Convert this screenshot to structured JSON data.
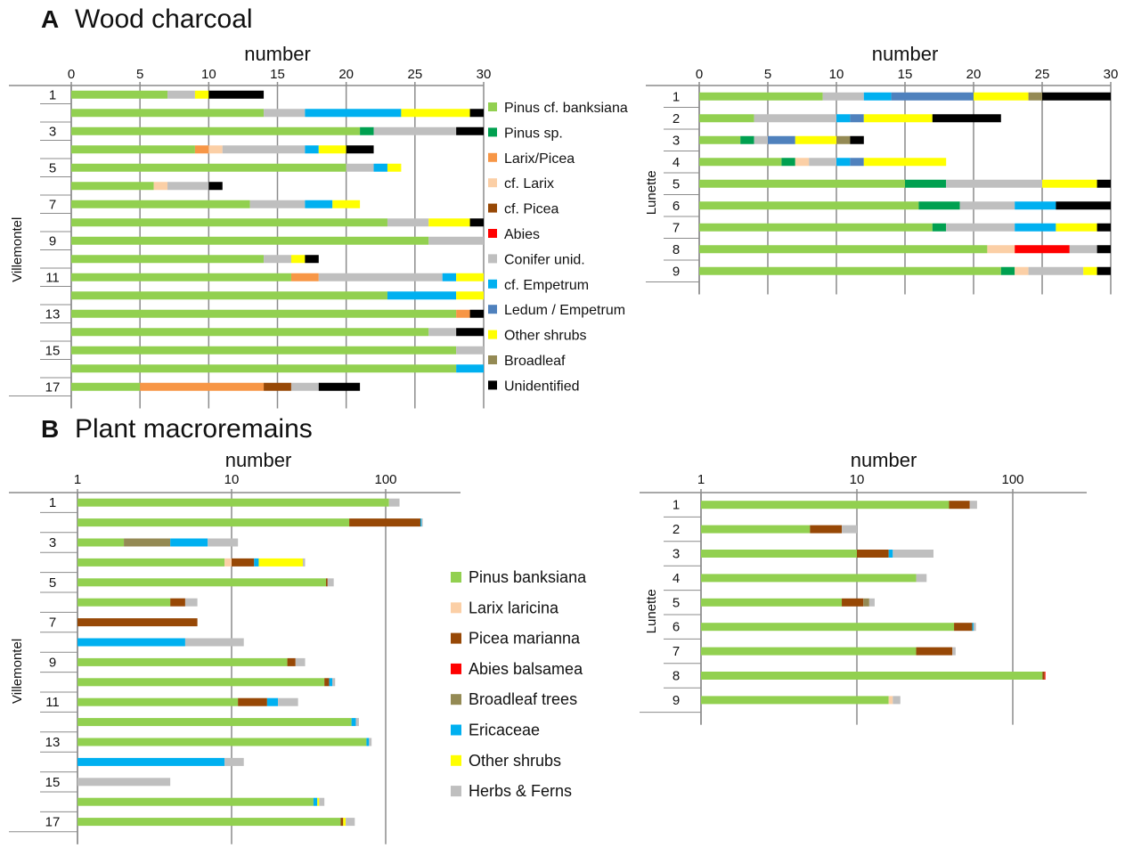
{
  "panel_a": {
    "letter": "A",
    "title": "Wood charcoal",
    "legend": [
      {
        "name": "Pinus cf. banksiana",
        "color": "#92d050"
      },
      {
        "name": "Pinus sp.",
        "color": "#00a050"
      },
      {
        "name": "Larix/Picea",
        "color": "#f79646"
      },
      {
        "name": "cf. Larix",
        "color": "#fbcfa6"
      },
      {
        "name": "cf. Picea",
        "color": "#974806"
      },
      {
        "name": "Abies",
        "color": "#ff0000"
      },
      {
        "name": "Conifer unid.",
        "color": "#bfbfbf"
      },
      {
        "name": "cf. Empetrum",
        "color": "#00b0f0"
      },
      {
        "name": "Ledum / Empetrum",
        "color": "#4f81bd"
      },
      {
        "name": "Other shrubs",
        "color": "#ffff00"
      },
      {
        "name": "Broadleaf",
        "color": "#948a54"
      },
      {
        "name": "Unidentified",
        "color": "#000000"
      }
    ]
  },
  "panel_b": {
    "letter": "B",
    "title": "Plant macroremains",
    "legend": [
      {
        "name": "Pinus banksiana",
        "color": "#92d050"
      },
      {
        "name": "Larix laricina",
        "color": "#fbcfa6"
      },
      {
        "name": "Picea marianna",
        "color": "#974806"
      },
      {
        "name": "Abies  balsamea",
        "color": "#ff0000"
      },
      {
        "name": "Broadleaf trees",
        "color": "#948a54"
      },
      {
        "name": "Ericaceae",
        "color": "#00b0f0"
      },
      {
        "name": "Other shrubs",
        "color": "#ffff00"
      },
      {
        "name": "Herbs & Ferns",
        "color": "#bfbfbf"
      }
    ]
  },
  "chart_data": [
    {
      "id": "a-villemontel",
      "type": "bar",
      "orientation": "horizontal",
      "stacked": true,
      "xlabel": "number",
      "ylabel": "Villemontel",
      "xlim": [
        0,
        30
      ],
      "xticks": [
        "0",
        "5",
        "10",
        "15",
        "20",
        "25",
        "30"
      ],
      "categories": [
        "1",
        "2",
        "3",
        "4",
        "5",
        "6",
        "7",
        "8",
        "9",
        "10",
        "11",
        "12",
        "13",
        "14",
        "15",
        "16",
        "17"
      ],
      "category_labels": [
        "1",
        "",
        "3",
        "",
        "5",
        "",
        "7",
        "",
        "9",
        "",
        "11",
        "",
        "13",
        "",
        "15",
        "",
        "17"
      ],
      "series": [
        {
          "name": "Pinus cf. banksiana",
          "values": [
            7,
            14,
            21,
            9,
            20,
            6,
            13,
            23,
            26,
            14,
            16,
            23,
            28,
            26,
            28,
            28,
            5
          ]
        },
        {
          "name": "Pinus sp.",
          "values": [
            0,
            0,
            1,
            0,
            0,
            0,
            0,
            0,
            0,
            0,
            0,
            0,
            0,
            0,
            0,
            0,
            0
          ]
        },
        {
          "name": "Larix/Picea",
          "values": [
            0,
            0,
            0,
            1,
            0,
            0,
            0,
            0,
            0,
            0,
            2,
            0,
            1,
            0,
            0,
            0,
            9
          ]
        },
        {
          "name": "cf. Larix",
          "values": [
            0,
            0,
            0,
            1,
            0,
            1,
            0,
            0,
            0,
            0,
            0,
            0,
            0,
            0,
            0,
            0,
            0
          ]
        },
        {
          "name": "cf. Picea",
          "values": [
            0,
            0,
            0,
            0,
            0,
            0,
            0,
            0,
            0,
            0,
            0,
            0,
            0,
            0,
            0,
            0,
            2
          ]
        },
        {
          "name": "Abies",
          "values": [
            0,
            0,
            0,
            0,
            0,
            0,
            0,
            0,
            0,
            0,
            0,
            0,
            0,
            0,
            0,
            0,
            0
          ]
        },
        {
          "name": "Conifer unid.",
          "values": [
            2,
            3,
            6,
            6,
            2,
            3,
            4,
            3,
            4,
            2,
            9,
            0,
            0,
            2,
            2,
            0,
            2
          ]
        },
        {
          "name": "cf. Empetrum",
          "values": [
            0,
            7,
            0,
            1,
            1,
            0,
            2,
            0,
            0,
            0,
            1,
            5,
            0,
            0,
            0,
            2,
            0
          ]
        },
        {
          "name": "Ledum / Empetrum",
          "values": [
            0,
            0,
            0,
            0,
            0,
            0,
            0,
            0,
            0,
            0,
            0,
            0,
            0,
            0,
            0,
            0,
            0
          ]
        },
        {
          "name": "Other shrubs",
          "values": [
            1,
            5,
            0,
            2,
            1,
            0,
            2,
            3,
            0,
            1,
            2,
            2,
            0,
            0,
            0,
            0,
            0
          ]
        },
        {
          "name": "Broadleaf",
          "values": [
            0,
            0,
            0,
            0,
            0,
            0,
            0,
            0,
            0,
            0,
            0,
            0,
            0,
            0,
            0,
            0,
            0
          ]
        },
        {
          "name": "Unidentified",
          "values": [
            4,
            1,
            2,
            2,
            0,
            1,
            0,
            1,
            0,
            1,
            0,
            0,
            1,
            2,
            0,
            0,
            3
          ]
        }
      ]
    },
    {
      "id": "a-lunette",
      "type": "bar",
      "orientation": "horizontal",
      "stacked": true,
      "xlabel": "number",
      "ylabel": "Lunette",
      "xlim": [
        0,
        30
      ],
      "xticks": [
        "0",
        "5",
        "10",
        "15",
        "20",
        "25",
        "30"
      ],
      "categories": [
        "1",
        "2",
        "3",
        "4",
        "5",
        "6",
        "7",
        "8",
        "9"
      ],
      "category_labels": [
        "1",
        "2",
        "3",
        "4",
        "5",
        "6",
        "7",
        "8",
        "9"
      ],
      "series": [
        {
          "name": "Pinus cf. banksiana",
          "values": [
            9,
            4,
            3,
            6,
            15,
            16,
            17,
            21,
            22
          ]
        },
        {
          "name": "Pinus sp.",
          "values": [
            0,
            0,
            1,
            1,
            3,
            3,
            1,
            0,
            1
          ]
        },
        {
          "name": "Larix/Picea",
          "values": [
            0,
            0,
            0,
            0,
            0,
            0,
            0,
            0,
            0
          ]
        },
        {
          "name": "cf. Larix",
          "values": [
            0,
            0,
            0,
            1,
            0,
            0,
            0,
            2,
            1
          ]
        },
        {
          "name": "cf. Picea",
          "values": [
            0,
            0,
            0,
            0,
            0,
            0,
            0,
            0,
            0
          ]
        },
        {
          "name": "Abies",
          "values": [
            0,
            0,
            0,
            0,
            0,
            0,
            0,
            4,
            0
          ]
        },
        {
          "name": "Conifer unid.",
          "values": [
            3,
            6,
            1,
            2,
            7,
            4,
            5,
            2,
            4
          ]
        },
        {
          "name": "cf. Empetrum",
          "values": [
            2,
            1,
            0,
            1,
            0,
            3,
            3,
            0,
            0
          ]
        },
        {
          "name": "Ledum / Empetrum",
          "values": [
            6,
            1,
            2,
            1,
            0,
            0,
            0,
            0,
            0
          ]
        },
        {
          "name": "Other shrubs",
          "values": [
            4,
            5,
            3,
            6,
            4,
            0,
            3,
            0,
            1
          ]
        },
        {
          "name": "Broadleaf",
          "values": [
            1,
            0,
            1,
            0,
            0,
            0,
            0,
            0,
            0
          ]
        },
        {
          "name": "Unidentified",
          "values": [
            5,
            5,
            1,
            0,
            1,
            4,
            1,
            1,
            1
          ]
        }
      ]
    },
    {
      "id": "b-villemontel",
      "type": "bar",
      "orientation": "horizontal",
      "stacked": true,
      "xscale": "log",
      "xlabel": "number",
      "ylabel": "Villemontel",
      "xlim": [
        1,
        500
      ],
      "xticks": [
        "1",
        "10",
        "100"
      ],
      "categories": [
        "1",
        "2",
        "3",
        "4",
        "5",
        "6",
        "7",
        "8",
        "9",
        "10",
        "11",
        "12",
        "13",
        "14",
        "15",
        "16",
        "17"
      ],
      "category_labels": [
        "1",
        "",
        "3",
        "",
        "5",
        "",
        "7",
        "",
        "9",
        "",
        "11",
        "",
        "13",
        "",
        "15",
        "",
        "17"
      ],
      "series": [
        {
          "name": "Pinus banksiana",
          "values": [
            105,
            58,
            2,
            9,
            41,
            4,
            0,
            0,
            23,
            40,
            11,
            60,
            75,
            0,
            0,
            34,
            51
          ]
        },
        {
          "name": "Larix laricina",
          "values": [
            0,
            0,
            0,
            1,
            0,
            0,
            0,
            0,
            0,
            0,
            0,
            0,
            0,
            0,
            0,
            0,
            0
          ]
        },
        {
          "name": "Picea marianna",
          "values": [
            0,
            110,
            0,
            4,
            1,
            1,
            6,
            0,
            3,
            3,
            6,
            0,
            0,
            0,
            0,
            0,
            2
          ]
        },
        {
          "name": "Abies  balsamea",
          "values": [
            0,
            0,
            0,
            0,
            0,
            0,
            0,
            0,
            0,
            0,
            0,
            0,
            0,
            0,
            0,
            0,
            0
          ]
        },
        {
          "name": "Broadleaf trees",
          "values": [
            0,
            0,
            2,
            0,
            0,
            0,
            0,
            0,
            0,
            0,
            0,
            0,
            0,
            0,
            0,
            0,
            0
          ]
        },
        {
          "name": "Ericaceae",
          "values": [
            0,
            3,
            3,
            1,
            0,
            0,
            0,
            5,
            0,
            2,
            3,
            4,
            3,
            9,
            0,
            2,
            0
          ]
        },
        {
          "name": "Other shrubs",
          "values": [
            0,
            0,
            0,
            14,
            0,
            0,
            0,
            0,
            0,
            0,
            0,
            0,
            0,
            0,
            0,
            1,
            2
          ]
        },
        {
          "name": "Herbs & Ferns",
          "values": [
            18,
            3,
            4,
            1,
            4,
            1,
            0,
            7,
            4,
            2,
            7,
            3,
            3,
            3,
            4,
            3,
            8
          ]
        }
      ]
    },
    {
      "id": "b-lunette",
      "type": "bar",
      "orientation": "horizontal",
      "stacked": true,
      "xscale": "log",
      "xlabel": "number",
      "ylabel": "Lunette",
      "xlim": [
        1,
        500
      ],
      "xticks": [
        "1",
        "10",
        "100"
      ],
      "categories": [
        "1",
        "2",
        "3",
        "4",
        "5",
        "6",
        "7",
        "8",
        "9"
      ],
      "category_labels": [
        "1",
        "2",
        "3",
        "4",
        "5",
        "6",
        "7",
        "8",
        "9"
      ],
      "series": [
        {
          "name": "Pinus banksiana",
          "values": [
            39,
            5,
            10,
            24,
            8,
            42,
            24,
            155,
            16
          ]
        },
        {
          "name": "Larix laricina",
          "values": [
            0,
            0,
            0,
            0,
            0,
            0,
            0,
            0,
            1
          ]
        },
        {
          "name": "Picea marianna",
          "values": [
            14,
            3,
            6,
            0,
            3,
            13,
            17,
            5,
            0
          ]
        },
        {
          "name": "Abies  balsamea",
          "values": [
            0,
            0,
            0,
            0,
            0,
            0,
            0,
            2,
            0
          ]
        },
        {
          "name": "Broadleaf trees",
          "values": [
            0,
            0,
            0,
            0,
            1,
            0,
            0,
            0,
            0
          ]
        },
        {
          "name": "Ericaceae",
          "values": [
            0,
            0,
            1,
            0,
            0,
            1,
            0,
            0,
            0
          ]
        },
        {
          "name": "Other shrubs",
          "values": [
            0,
            0,
            0,
            0,
            0,
            0,
            0,
            0,
            0
          ]
        },
        {
          "name": "Herbs & Ferns",
          "values": [
            6,
            2,
            14,
            4,
            1,
            2,
            2,
            0,
            2
          ]
        }
      ]
    }
  ]
}
